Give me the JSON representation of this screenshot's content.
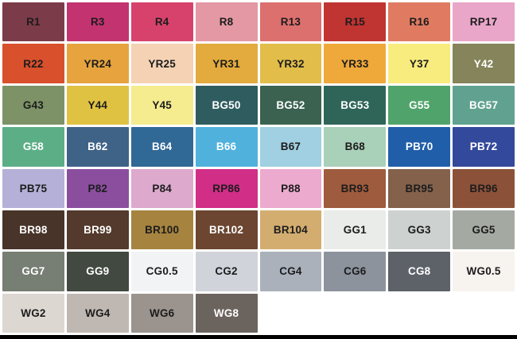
{
  "page": {
    "background": "#ffffff",
    "gap_color": "#ffffff",
    "bottom_bar_color": "#000000",
    "label_dark": "#1c1c1c",
    "label_light": "#ffffff"
  },
  "grid": {
    "columns": 8,
    "rows": 8,
    "cells": [
      {
        "label": "R1",
        "color": "#7b3b49",
        "text_color": "#1c1c1c"
      },
      {
        "label": "R3",
        "color": "#c2336f",
        "text_color": "#1c1c1c"
      },
      {
        "label": "R4",
        "color": "#d7426c",
        "text_color": "#1c1c1c"
      },
      {
        "label": "R8",
        "color": "#e398a3",
        "text_color": "#1c1c1c"
      },
      {
        "label": "R13",
        "color": "#dc706e",
        "text_color": "#1c1c1c"
      },
      {
        "label": "R15",
        "color": "#c03432",
        "text_color": "#1c1c1c"
      },
      {
        "label": "R16",
        "color": "#e07b62",
        "text_color": "#1c1c1c"
      },
      {
        "label": "RP17",
        "color": "#e9a6c9",
        "text_color": "#1c1c1c"
      },
      {
        "label": "R22",
        "color": "#d8502c",
        "text_color": "#1c1c1c"
      },
      {
        "label": "YR24",
        "color": "#e6a33e",
        "text_color": "#1c1c1c"
      },
      {
        "label": "YR25",
        "color": "#f5d2b4",
        "text_color": "#1c1c1c"
      },
      {
        "label": "YR31",
        "color": "#e3ab3d",
        "text_color": "#1c1c1c"
      },
      {
        "label": "YR32",
        "color": "#e2bd4a",
        "text_color": "#1c1c1c"
      },
      {
        "label": "YR33",
        "color": "#efa93b",
        "text_color": "#1c1c1c"
      },
      {
        "label": "Y37",
        "color": "#f9ec7f",
        "text_color": "#1c1c1c"
      },
      {
        "label": "Y42",
        "color": "#85845a",
        "text_color": "#ffffff"
      },
      {
        "label": "G43",
        "color": "#7d9367",
        "text_color": "#1c1c1c"
      },
      {
        "label": "Y44",
        "color": "#e0c242",
        "text_color": "#1c1c1c"
      },
      {
        "label": "Y45",
        "color": "#f4ec8e",
        "text_color": "#1c1c1c"
      },
      {
        "label": "BG50",
        "color": "#2f5c5f",
        "text_color": "#ffffff"
      },
      {
        "label": "BG52",
        "color": "#3b6251",
        "text_color": "#ffffff"
      },
      {
        "label": "BG53",
        "color": "#2f6558",
        "text_color": "#ffffff"
      },
      {
        "label": "G55",
        "color": "#50a46b",
        "text_color": "#ffffff"
      },
      {
        "label": "BG57",
        "color": "#60a28f",
        "text_color": "#ffffff"
      },
      {
        "label": "G58",
        "color": "#5cae86",
        "text_color": "#ffffff"
      },
      {
        "label": "B62",
        "color": "#3f6287",
        "text_color": "#ffffff"
      },
      {
        "label": "B64",
        "color": "#306896",
        "text_color": "#ffffff"
      },
      {
        "label": "B66",
        "color": "#50b1dd",
        "text_color": "#ffffff"
      },
      {
        "label": "B67",
        "color": "#a0d0e1",
        "text_color": "#1c1c1c"
      },
      {
        "label": "B68",
        "color": "#a9d0b9",
        "text_color": "#1c1c1c"
      },
      {
        "label": "PB70",
        "color": "#205ea9",
        "text_color": "#ffffff"
      },
      {
        "label": "PB72",
        "color": "#33499b",
        "text_color": "#ffffff"
      },
      {
        "label": "PB75",
        "color": "#b4b0d7",
        "text_color": "#1c1c1c"
      },
      {
        "label": "P82",
        "color": "#8b4e9f",
        "text_color": "#1c1c1c"
      },
      {
        "label": "P84",
        "color": "#dda9cd",
        "text_color": "#1c1c1c"
      },
      {
        "label": "RP86",
        "color": "#d12e88",
        "text_color": "#1c1c1c"
      },
      {
        "label": "P88",
        "color": "#ecaace",
        "text_color": "#1c1c1c"
      },
      {
        "label": "BR93",
        "color": "#9e5b3d",
        "text_color": "#1c1c1c"
      },
      {
        "label": "BR95",
        "color": "#83614b",
        "text_color": "#1c1c1c"
      },
      {
        "label": "BR96",
        "color": "#8c5239",
        "text_color": "#1c1c1c"
      },
      {
        "label": "BR98",
        "color": "#483429",
        "text_color": "#ffffff"
      },
      {
        "label": "BR99",
        "color": "#533a2c",
        "text_color": "#ffffff"
      },
      {
        "label": "BR100",
        "color": "#a6833f",
        "text_color": "#1c1c1c"
      },
      {
        "label": "BR102",
        "color": "#6c4631",
        "text_color": "#ffffff"
      },
      {
        "label": "BR104",
        "color": "#d3ad70",
        "text_color": "#1c1c1c"
      },
      {
        "label": "GG1",
        "color": "#e9ece9",
        "text_color": "#1c1c1c"
      },
      {
        "label": "GG3",
        "color": "#cdd1cf",
        "text_color": "#1c1c1c"
      },
      {
        "label": "GG5",
        "color": "#a4a9a2",
        "text_color": "#1c1c1c"
      },
      {
        "label": "GG7",
        "color": "#777e73",
        "text_color": "#ffffff"
      },
      {
        "label": "GG9",
        "color": "#414941",
        "text_color": "#ffffff"
      },
      {
        "label": "CG0.5",
        "color": "#f2f3f5",
        "text_color": "#1c1c1c"
      },
      {
        "label": "CG2",
        "color": "#d0d3d9",
        "text_color": "#1c1c1c"
      },
      {
        "label": "CG4",
        "color": "#abb1bb",
        "text_color": "#1c1c1c"
      },
      {
        "label": "CG6",
        "color": "#8d939d",
        "text_color": "#1c1c1c"
      },
      {
        "label": "CG8",
        "color": "#5d6269",
        "text_color": "#ffffff"
      },
      {
        "label": "WG0.5",
        "color": "#f7f3ef",
        "text_color": "#1c1c1c"
      },
      {
        "label": "WG2",
        "color": "#ddd7d1",
        "text_color": "#1c1c1c"
      },
      {
        "label": "WG4",
        "color": "#bfb7b1",
        "text_color": "#1c1c1c"
      },
      {
        "label": "WG6",
        "color": "#9b938d",
        "text_color": "#1c1c1c"
      },
      {
        "label": "WG8",
        "color": "#6b635d",
        "text_color": "#ffffff"
      }
    ]
  }
}
